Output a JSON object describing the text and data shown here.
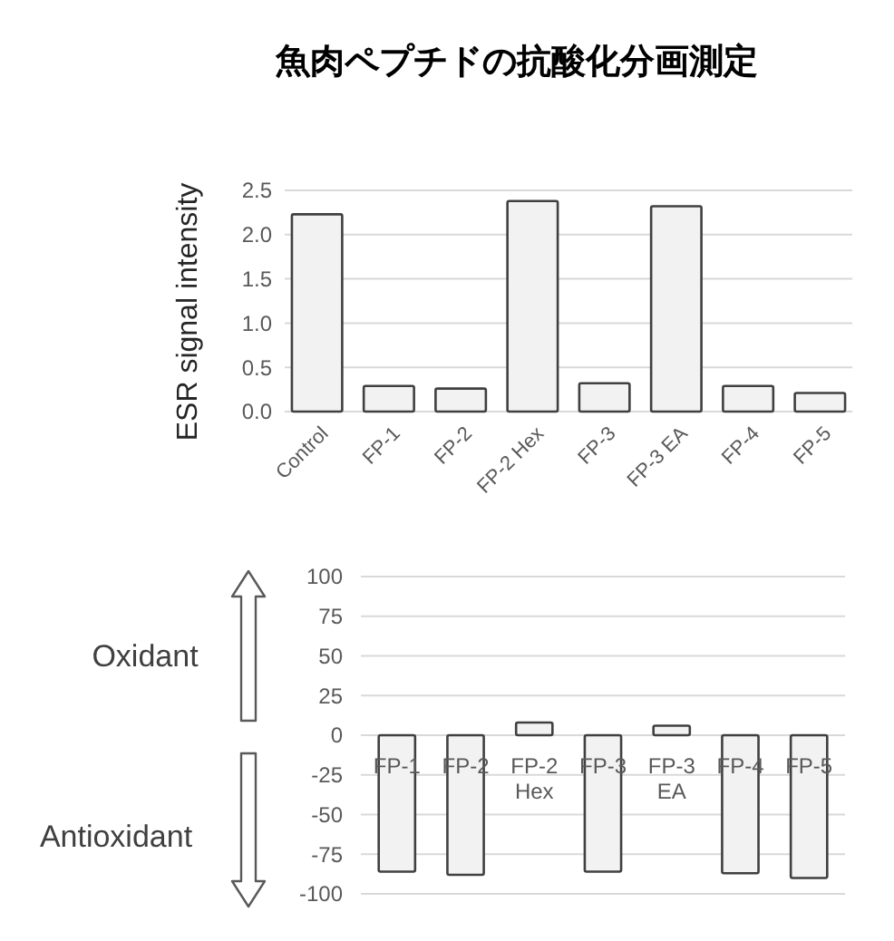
{
  "chart_data": [
    {
      "type": "bar",
      "title": "魚肉ペプチドの抗酸化分画測定",
      "ylabel": "ESR signal intensity",
      "categories": [
        "Control",
        "FP-1",
        "FP-2",
        "FP-2 Hex",
        "FP-3",
        "FP-3 EA",
        "FP-4",
        "FP-5"
      ],
      "values": [
        2.23,
        0.29,
        0.26,
        2.38,
        0.32,
        2.32,
        0.29,
        0.21
      ],
      "color": "#f2f2f2",
      "ylim": [
        0,
        2.5
      ],
      "yticks": [
        {
          "value": 0,
          "label": "0.0"
        },
        {
          "value": 0.5,
          "label": "0.5"
        },
        {
          "value": 1,
          "label": "1.0"
        },
        1.5,
        {
          "value": 2,
          "label": "2.0"
        },
        2.5
      ],
      "grid": "y"
    },
    {
      "type": "bar",
      "categories": [
        "FP-1",
        "FP-2",
        "FP-2 Hex",
        "FP-3",
        "FP-3 EA",
        "FP-4",
        "FP-5"
      ],
      "values": [
        -86,
        -88,
        8,
        -86,
        6,
        -87,
        -90
      ],
      "color": "#f2f2f2",
      "ylim": [
        -100,
        100
      ],
      "yticks": [
        -100,
        -75,
        -50,
        -25,
        0,
        25,
        50,
        75,
        100
      ],
      "grid": "y",
      "annotations": [
        "Oxidant",
        "Antioxidant"
      ]
    }
  ]
}
